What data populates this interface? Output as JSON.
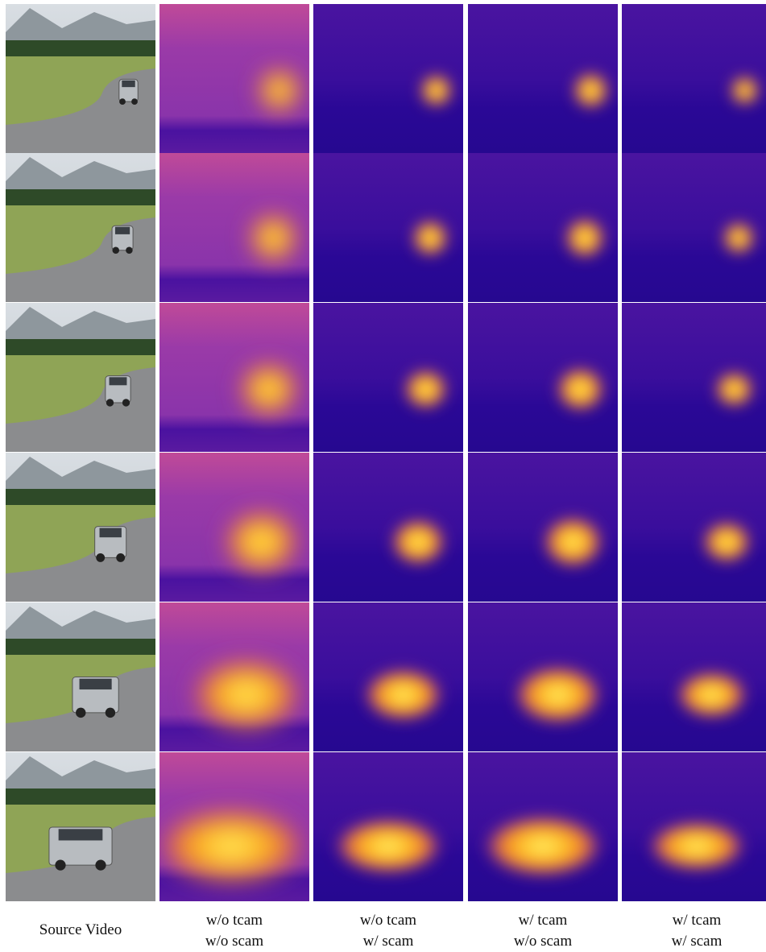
{
  "columns": [
    [
      "Source Video"
    ],
    [
      "w/o tcam",
      "w/o scam"
    ],
    [
      "w/o tcam",
      "w/ scam"
    ],
    [
      "w/ tcam",
      "w/o scam"
    ],
    [
      "w/ tcam",
      "w/ scam"
    ]
  ]
}
